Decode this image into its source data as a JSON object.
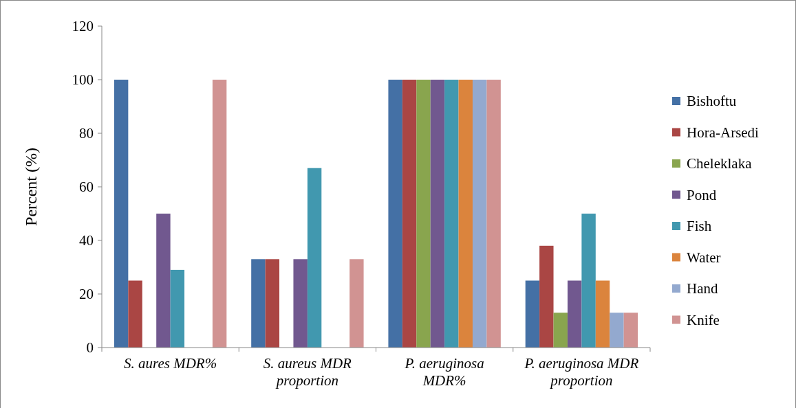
{
  "chart_data": {
    "type": "bar",
    "ylabel": "Percent (%)",
    "categories": [
      "S. aures MDR%",
      "S. aureus MDR proportion",
      "P. aeruginosa MDR%",
      "P. aeruginosa MDR proportion"
    ],
    "series": [
      {
        "name": "Bishoftu",
        "color": "#4470a5",
        "values": [
          100,
          33,
          100,
          25
        ]
      },
      {
        "name": "Hora-Arsedi",
        "color": "#aa4644",
        "values": [
          25,
          33,
          100,
          38
        ]
      },
      {
        "name": "Cheleklaka",
        "color": "#89a54e",
        "values": [
          0,
          0,
          100,
          13
        ]
      },
      {
        "name": "Pond",
        "color": "#71588f",
        "values": [
          50,
          33,
          100,
          25
        ]
      },
      {
        "name": "Fish",
        "color": "#4198af",
        "values": [
          29,
          67,
          100,
          50
        ]
      },
      {
        "name": "Water",
        "color": "#db843d",
        "values": [
          0,
          0,
          100,
          25
        ]
      },
      {
        "name": "Hand",
        "color": "#93a9cf",
        "values": [
          0,
          0,
          100,
          13
        ]
      },
      {
        "name": "Knife",
        "color": "#d19392",
        "values": [
          100,
          33,
          100,
          13
        ]
      }
    ],
    "ylim": [
      0,
      120
    ],
    "yticks": [
      0,
      20,
      40,
      60,
      80,
      100,
      120
    ],
    "grid": false,
    "legend": "right"
  }
}
